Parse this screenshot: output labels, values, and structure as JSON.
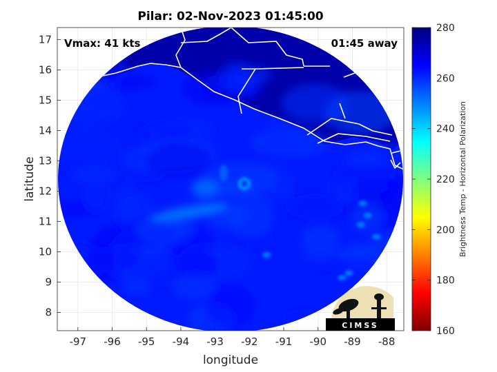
{
  "chart_data": {
    "type": "heatmap",
    "title": "Pilar: 02-Nov-2023 01:45:00",
    "xlabel": "longitude",
    "ylabel": "latitude",
    "xlim": [
      -97.6,
      -87.5
    ],
    "ylim": [
      7.4,
      17.4
    ],
    "x_ticks": [
      -97,
      -96,
      -95,
      -94,
      -93,
      -92,
      -91,
      -90,
      -89,
      -88
    ],
    "y_ticks": [
      8,
      9,
      10,
      11,
      12,
      13,
      14,
      15,
      16,
      17
    ],
    "grid": true,
    "field": "Brightness Temp - Horizontal Polarization",
    "swath_center": {
      "lon": -92.55,
      "lat": 12.4
    },
    "colorbar": {
      "label": "Brightness Temp - Horizontal Polarization",
      "range": [
        160,
        280
      ],
      "ticks": [
        160,
        180,
        200,
        220,
        240,
        260,
        280
      ],
      "colormap": [
        "#7f0000",
        "#ff0000",
        "#ff8000",
        "#ffff00",
        "#80ff80",
        "#00ffff",
        "#0080ff",
        "#0000ff",
        "#00007f"
      ]
    },
    "annotations": {
      "vmax": "Vmax: 41 kts",
      "time_offset": "01:45 away"
    },
    "typical_values": {
      "ocean": 262,
      "land": 275,
      "storm_core": 250
    }
  },
  "logo": {
    "text": "CIMSS",
    "icon": "cimss-logo-icon"
  }
}
